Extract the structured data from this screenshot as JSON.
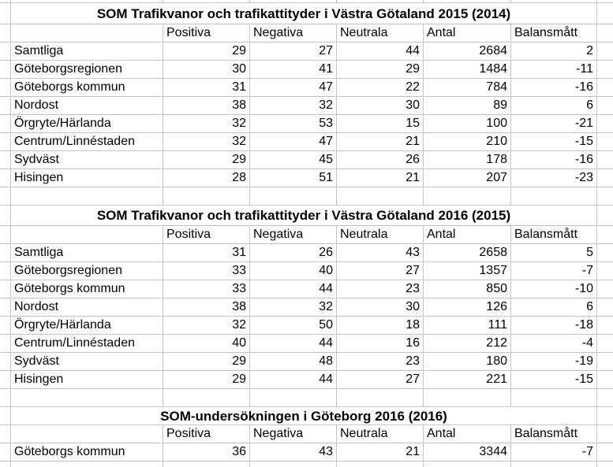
{
  "sheet": {
    "column_headers": [
      "Positiva",
      "Negativa",
      "Neutrala",
      "Antal",
      "Balansmått"
    ],
    "tables": [
      {
        "title": "SOM Trafikvanor och trafikattityder i Västra Götaland 2015 (2014)",
        "rows": [
          {
            "label": "Samtliga",
            "values": [
              29,
              27,
              44,
              2684,
              2
            ]
          },
          {
            "label": "Göteborgsregionen",
            "values": [
              30,
              41,
              29,
              1484,
              -11
            ]
          },
          {
            "label": "Göteborgs kommun",
            "values": [
              31,
              47,
              22,
              784,
              -16
            ]
          },
          {
            "label": "Nordost",
            "values": [
              38,
              32,
              30,
              89,
              6
            ]
          },
          {
            "label": "Örgryte/Härlanda",
            "values": [
              32,
              53,
              15,
              100,
              -21
            ]
          },
          {
            "label": "Centrum/Linnéstaden",
            "values": [
              32,
              47,
              21,
              210,
              -15
            ]
          },
          {
            "label": "Sydväst",
            "values": [
              29,
              45,
              26,
              178,
              -16
            ]
          },
          {
            "label": "Hisingen",
            "values": [
              28,
              51,
              21,
              207,
              -23
            ]
          }
        ]
      },
      {
        "title": "SOM Trafikvanor och trafikattityder i Västra Götaland 2016 (2015)",
        "rows": [
          {
            "label": "Samtliga",
            "values": [
              31,
              26,
              43,
              2658,
              5
            ]
          },
          {
            "label": "Göteborgsregionen",
            "values": [
              33,
              40,
              27,
              1357,
              -7
            ]
          },
          {
            "label": "Göteborgs kommun",
            "values": [
              33,
              44,
              23,
              850,
              -10
            ]
          },
          {
            "label": "Nordost",
            "values": [
              38,
              32,
              30,
              126,
              6
            ]
          },
          {
            "label": "Örgryte/Härlanda",
            "values": [
              32,
              50,
              18,
              111,
              -18
            ]
          },
          {
            "label": "Centrum/Linnéstaden",
            "values": [
              40,
              44,
              16,
              212,
              -4
            ]
          },
          {
            "label": "Sydväst",
            "values": [
              29,
              48,
              23,
              180,
              -19
            ]
          },
          {
            "label": "Hisingen",
            "values": [
              29,
              44,
              27,
              221,
              -15
            ]
          }
        ]
      },
      {
        "title": "SOM-undersökningen i Göteborg 2016 (2016)",
        "rows": [
          {
            "label": "Göteborgs kommun",
            "values": [
              36,
              43,
              21,
              3344,
              -7
            ]
          }
        ]
      }
    ],
    "colors": {
      "gridline": "#c5c5c5",
      "background": "#ffffff",
      "text": "#000000"
    }
  }
}
